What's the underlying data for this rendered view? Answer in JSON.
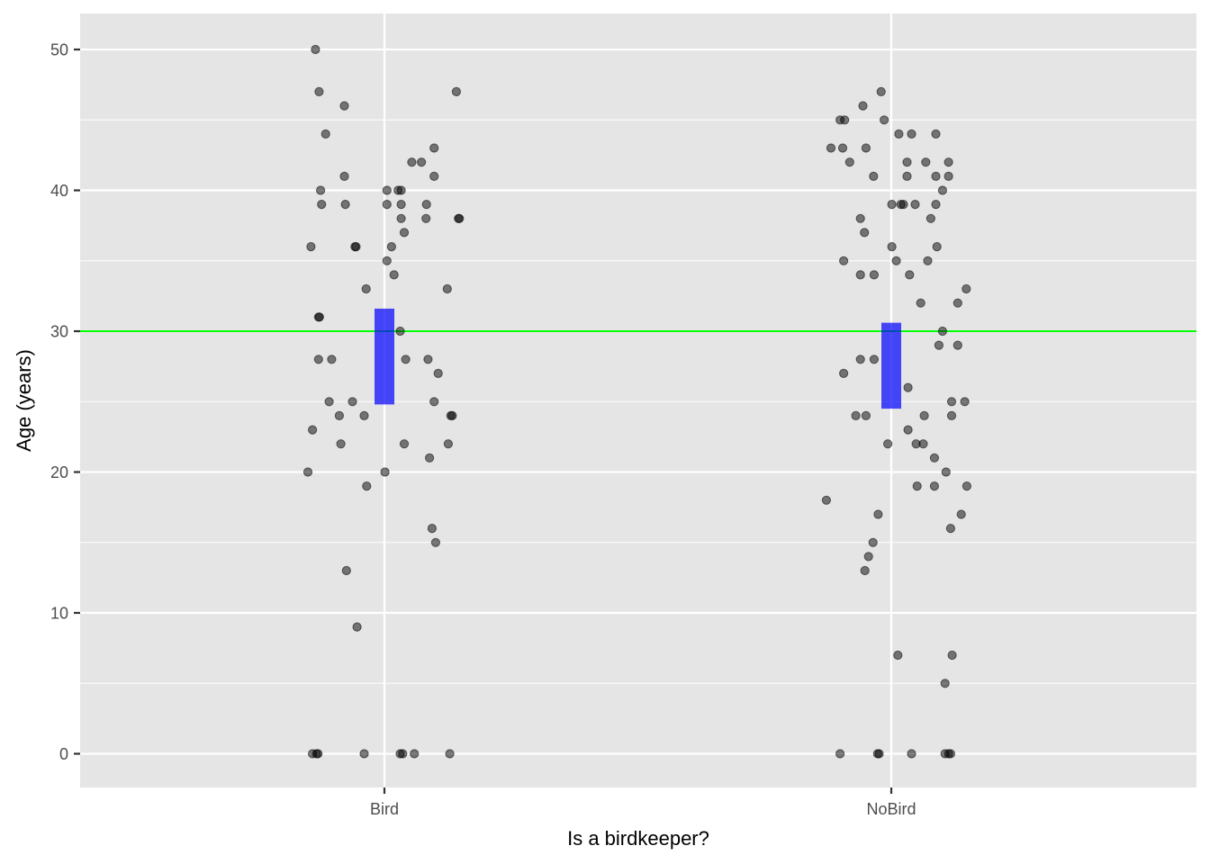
{
  "chart_data": {
    "type": "scatter",
    "title": "",
    "xlabel": "Is a birdkeeper?",
    "ylabel": "Age (years)",
    "categories": [
      "Bird",
      "NoBird"
    ],
    "yticks": [
      0,
      10,
      20,
      30,
      40,
      50
    ],
    "ylim": [
      -2.5,
      52.5
    ],
    "grid": true,
    "reference_line": {
      "y": 30,
      "color": "#00ff00"
    },
    "mean_ci": [
      {
        "category": "Bird",
        "low": 24.8,
        "high": 31.6,
        "color": "#0000ff"
      },
      {
        "category": "NoBird",
        "low": 24.5,
        "high": 30.6,
        "color": "#0000ff"
      }
    ],
    "colors": {
      "panel": "#e5e5e5",
      "grid": "#ffffff",
      "point": "#000000"
    },
    "points": [
      {
        "c": "Bird",
        "j": -0.136,
        "y": 50
      },
      {
        "c": "Bird",
        "j": -0.129,
        "y": 47
      },
      {
        "c": "Bird",
        "j": 0.142,
        "y": 47
      },
      {
        "c": "Bird",
        "j": -0.079,
        "y": 46
      },
      {
        "c": "Bird",
        "j": -0.116,
        "y": 44
      },
      {
        "c": "Bird",
        "j": 0.098,
        "y": 43
      },
      {
        "c": "Bird",
        "j": 0.054,
        "y": 42
      },
      {
        "c": "Bird",
        "j": 0.073,
        "y": 42
      },
      {
        "c": "Bird",
        "j": -0.079,
        "y": 41
      },
      {
        "c": "Bird",
        "j": 0.098,
        "y": 41
      },
      {
        "c": "Bird",
        "j": -0.126,
        "y": 40
      },
      {
        "c": "Bird",
        "j": 0.005,
        "y": 40
      },
      {
        "c": "Bird",
        "j": 0.027,
        "y": 40
      },
      {
        "c": "Bird",
        "j": 0.033,
        "y": 40
      },
      {
        "c": "Bird",
        "j": -0.124,
        "y": 39
      },
      {
        "c": "Bird",
        "j": -0.077,
        "y": 39
      },
      {
        "c": "Bird",
        "j": 0.005,
        "y": 39
      },
      {
        "c": "Bird",
        "j": 0.033,
        "y": 39
      },
      {
        "c": "Bird",
        "j": 0.083,
        "y": 39
      },
      {
        "c": "Bird",
        "j": 0.033,
        "y": 38
      },
      {
        "c": "Bird",
        "j": 0.082,
        "y": 38
      },
      {
        "c": "Bird",
        "j": 0.146,
        "y": 38
      },
      {
        "c": "Bird",
        "j": 0.148,
        "y": 38
      },
      {
        "c": "Bird",
        "j": 0.039,
        "y": 37
      },
      {
        "c": "Bird",
        "j": -0.145,
        "y": 36
      },
      {
        "c": "Bird",
        "j": -0.058,
        "y": 36
      },
      {
        "c": "Bird",
        "j": -0.056,
        "y": 36
      },
      {
        "c": "Bird",
        "j": 0.014,
        "y": 36
      },
      {
        "c": "Bird",
        "j": 0.005,
        "y": 35
      },
      {
        "c": "Bird",
        "j": 0.019,
        "y": 34
      },
      {
        "c": "Bird",
        "j": -0.036,
        "y": 33
      },
      {
        "c": "Bird",
        "j": 0.124,
        "y": 33
      },
      {
        "c": "Bird",
        "j": -0.13,
        "y": 31
      },
      {
        "c": "Bird",
        "j": -0.128,
        "y": 31
      },
      {
        "c": "Bird",
        "j": 0.031,
        "y": 30
      },
      {
        "c": "Bird",
        "j": -0.13,
        "y": 28
      },
      {
        "c": "Bird",
        "j": -0.104,
        "y": 28
      },
      {
        "c": "Bird",
        "j": 0.042,
        "y": 28
      },
      {
        "c": "Bird",
        "j": 0.086,
        "y": 28
      },
      {
        "c": "Bird",
        "j": 0.106,
        "y": 27
      },
      {
        "c": "Bird",
        "j": -0.109,
        "y": 25
      },
      {
        "c": "Bird",
        "j": -0.063,
        "y": 25
      },
      {
        "c": "Bird",
        "j": 0.098,
        "y": 25
      },
      {
        "c": "Bird",
        "j": -0.089,
        "y": 24
      },
      {
        "c": "Bird",
        "j": -0.04,
        "y": 24
      },
      {
        "c": "Bird",
        "j": 0.131,
        "y": 24
      },
      {
        "c": "Bird",
        "j": 0.134,
        "y": 24
      },
      {
        "c": "Bird",
        "j": -0.142,
        "y": 23
      },
      {
        "c": "Bird",
        "j": -0.086,
        "y": 22
      },
      {
        "c": "Bird",
        "j": 0.039,
        "y": 22
      },
      {
        "c": "Bird",
        "j": 0.126,
        "y": 22
      },
      {
        "c": "Bird",
        "j": 0.089,
        "y": 21
      },
      {
        "c": "Bird",
        "j": -0.151,
        "y": 20
      },
      {
        "c": "Bird",
        "j": 0.001,
        "y": 20
      },
      {
        "c": "Bird",
        "j": -0.035,
        "y": 19
      },
      {
        "c": "Bird",
        "j": 0.094,
        "y": 16
      },
      {
        "c": "Bird",
        "j": 0.101,
        "y": 15
      },
      {
        "c": "Bird",
        "j": -0.075,
        "y": 13
      },
      {
        "c": "Bird",
        "j": -0.054,
        "y": 9
      },
      {
        "c": "Bird",
        "j": -0.142,
        "y": 0
      },
      {
        "c": "Bird",
        "j": -0.134,
        "y": 0
      },
      {
        "c": "Bird",
        "j": -0.131,
        "y": 0
      },
      {
        "c": "Bird",
        "j": -0.04,
        "y": 0
      },
      {
        "c": "Bird",
        "j": 0.031,
        "y": 0
      },
      {
        "c": "Bird",
        "j": 0.036,
        "y": 0
      },
      {
        "c": "Bird",
        "j": 0.059,
        "y": 0
      },
      {
        "c": "Bird",
        "j": 0.129,
        "y": 0
      },
      {
        "c": "NoBird",
        "j": -0.02,
        "y": 47
      },
      {
        "c": "NoBird",
        "j": -0.056,
        "y": 46
      },
      {
        "c": "NoBird",
        "j": -0.101,
        "y": 45
      },
      {
        "c": "NoBird",
        "j": -0.092,
        "y": 45
      },
      {
        "c": "NoBird",
        "j": -0.014,
        "y": 45
      },
      {
        "c": "NoBird",
        "j": 0.015,
        "y": 44
      },
      {
        "c": "NoBird",
        "j": 0.04,
        "y": 44
      },
      {
        "c": "NoBird",
        "j": 0.088,
        "y": 44
      },
      {
        "c": "NoBird",
        "j": -0.119,
        "y": 43
      },
      {
        "c": "NoBird",
        "j": -0.096,
        "y": 43
      },
      {
        "c": "NoBird",
        "j": -0.05,
        "y": 43
      },
      {
        "c": "NoBird",
        "j": -0.082,
        "y": 42
      },
      {
        "c": "NoBird",
        "j": 0.031,
        "y": 42
      },
      {
        "c": "NoBird",
        "j": 0.068,
        "y": 42
      },
      {
        "c": "NoBird",
        "j": 0.113,
        "y": 42
      },
      {
        "c": "NoBird",
        "j": -0.035,
        "y": 41
      },
      {
        "c": "NoBird",
        "j": 0.031,
        "y": 41
      },
      {
        "c": "NoBird",
        "j": 0.088,
        "y": 41
      },
      {
        "c": "NoBird",
        "j": 0.113,
        "y": 41
      },
      {
        "c": "NoBird",
        "j": 0.101,
        "y": 40
      },
      {
        "c": "NoBird",
        "j": 0.001,
        "y": 39
      },
      {
        "c": "NoBird",
        "j": 0.019,
        "y": 39
      },
      {
        "c": "NoBird",
        "j": 0.024,
        "y": 39
      },
      {
        "c": "NoBird",
        "j": 0.047,
        "y": 39
      },
      {
        "c": "NoBird",
        "j": 0.088,
        "y": 39
      },
      {
        "c": "NoBird",
        "j": -0.061,
        "y": 38
      },
      {
        "c": "NoBird",
        "j": 0.078,
        "y": 38
      },
      {
        "c": "NoBird",
        "j": -0.053,
        "y": 37
      },
      {
        "c": "NoBird",
        "j": 0.001,
        "y": 36
      },
      {
        "c": "NoBird",
        "j": 0.09,
        "y": 36
      },
      {
        "c": "NoBird",
        "j": -0.094,
        "y": 35
      },
      {
        "c": "NoBird",
        "j": 0.01,
        "y": 35
      },
      {
        "c": "NoBird",
        "j": 0.072,
        "y": 35
      },
      {
        "c": "NoBird",
        "j": -0.061,
        "y": 34
      },
      {
        "c": "NoBird",
        "j": -0.034,
        "y": 34
      },
      {
        "c": "NoBird",
        "j": 0.036,
        "y": 34
      },
      {
        "c": "NoBird",
        "j": 0.148,
        "y": 33
      },
      {
        "c": "NoBird",
        "j": 0.058,
        "y": 32
      },
      {
        "c": "NoBird",
        "j": 0.131,
        "y": 32
      },
      {
        "c": "NoBird",
        "j": 0.101,
        "y": 30
      },
      {
        "c": "NoBird",
        "j": 0.094,
        "y": 29
      },
      {
        "c": "NoBird",
        "j": 0.131,
        "y": 29
      },
      {
        "c": "NoBird",
        "j": -0.061,
        "y": 28
      },
      {
        "c": "NoBird",
        "j": -0.034,
        "y": 28
      },
      {
        "c": "NoBird",
        "j": -0.094,
        "y": 27
      },
      {
        "c": "NoBird",
        "j": 0.033,
        "y": 26
      },
      {
        "c": "NoBird",
        "j": 0.119,
        "y": 25
      },
      {
        "c": "NoBird",
        "j": 0.145,
        "y": 25
      },
      {
        "c": "NoBird",
        "j": -0.07,
        "y": 24
      },
      {
        "c": "NoBird",
        "j": -0.05,
        "y": 24
      },
      {
        "c": "NoBird",
        "j": 0.065,
        "y": 24
      },
      {
        "c": "NoBird",
        "j": 0.119,
        "y": 24
      },
      {
        "c": "NoBird",
        "j": 0.033,
        "y": 23
      },
      {
        "c": "NoBird",
        "j": -0.007,
        "y": 22
      },
      {
        "c": "NoBird",
        "j": 0.049,
        "y": 22
      },
      {
        "c": "NoBird",
        "j": 0.063,
        "y": 22
      },
      {
        "c": "NoBird",
        "j": 0.085,
        "y": 21
      },
      {
        "c": "NoBird",
        "j": 0.108,
        "y": 20
      },
      {
        "c": "NoBird",
        "j": 0.051,
        "y": 19
      },
      {
        "c": "NoBird",
        "j": 0.085,
        "y": 19
      },
      {
        "c": "NoBird",
        "j": 0.149,
        "y": 19
      },
      {
        "c": "NoBird",
        "j": -0.128,
        "y": 18
      },
      {
        "c": "NoBird",
        "j": -0.026,
        "y": 17
      },
      {
        "c": "NoBird",
        "j": 0.138,
        "y": 17
      },
      {
        "c": "NoBird",
        "j": 0.117,
        "y": 16
      },
      {
        "c": "NoBird",
        "j": -0.036,
        "y": 15
      },
      {
        "c": "NoBird",
        "j": -0.045,
        "y": 14
      },
      {
        "c": "NoBird",
        "j": -0.052,
        "y": 13
      },
      {
        "c": "NoBird",
        "j": 0.013,
        "y": 7
      },
      {
        "c": "NoBird",
        "j": 0.12,
        "y": 7
      },
      {
        "c": "NoBird",
        "j": 0.106,
        "y": 5
      },
      {
        "c": "NoBird",
        "j": -0.101,
        "y": 0
      },
      {
        "c": "NoBird",
        "j": -0.027,
        "y": 0
      },
      {
        "c": "NoBird",
        "j": -0.024,
        "y": 0
      },
      {
        "c": "NoBird",
        "j": 0.04,
        "y": 0
      },
      {
        "c": "NoBird",
        "j": 0.106,
        "y": 0
      },
      {
        "c": "NoBird",
        "j": 0.113,
        "y": 0
      },
      {
        "c": "NoBird",
        "j": 0.117,
        "y": 0
      }
    ]
  }
}
